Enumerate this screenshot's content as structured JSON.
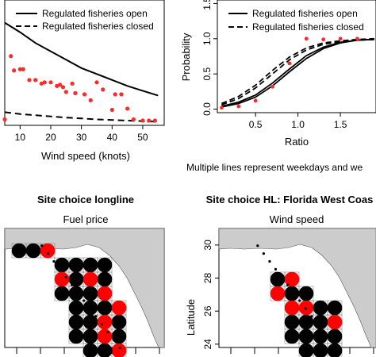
{
  "chart_data": [
    {
      "type": "scatter",
      "xlabel": "Wind speed (knots)",
      "xticks": [
        10,
        20,
        30,
        40,
        50
      ],
      "xlim": [
        5,
        57
      ],
      "ylim": [
        0,
        1.05
      ],
      "legend": {
        "placement": "top-right",
        "entries": [
          "Regulated fisheries open",
          "Regulated fisheries closed"
        ]
      },
      "points": [
        [
          5,
          0.05
        ],
        [
          7,
          0.58
        ],
        [
          8,
          0.46
        ],
        [
          10,
          0.47
        ],
        [
          11,
          0.47
        ],
        [
          13,
          0.38
        ],
        [
          15,
          0.38
        ],
        [
          17,
          0.35
        ],
        [
          18,
          0.36
        ],
        [
          20,
          0.36
        ],
        [
          22,
          0.33
        ],
        [
          23,
          0.34
        ],
        [
          24,
          0.32
        ],
        [
          25,
          0.28
        ],
        [
          27,
          0.35
        ],
        [
          28,
          0.27
        ],
        [
          31,
          0.26
        ],
        [
          33,
          0.21
        ],
        [
          35,
          0.36
        ],
        [
          37,
          0.3
        ],
        [
          40,
          0.13
        ],
        [
          41,
          0.26
        ],
        [
          43,
          0.26
        ],
        [
          45,
          0.14
        ],
        [
          47,
          0.05
        ],
        [
          50,
          0.04
        ],
        [
          52,
          0.04
        ],
        [
          54,
          0.04
        ]
      ],
      "series": [
        {
          "name": "Regulated fisheries open",
          "style": "solid",
          "x": [
            5,
            10,
            15,
            20,
            25,
            30,
            35,
            40,
            45,
            50,
            55
          ],
          "y": [
            0.86,
            0.78,
            0.69,
            0.62,
            0.55,
            0.48,
            0.43,
            0.38,
            0.33,
            0.29,
            0.25
          ]
        },
        {
          "name": "Regulated fisheries closed",
          "style": "dashed",
          "x": [
            5,
            10,
            15,
            20,
            25,
            30,
            35,
            40,
            45,
            50,
            55
          ],
          "y": [
            0.11,
            0.095,
            0.085,
            0.075,
            0.065,
            0.058,
            0.05,
            0.045,
            0.04,
            0.035,
            0.03
          ]
        }
      ]
    },
    {
      "type": "line",
      "xlabel": "Ratio",
      "ylabel": "Probability",
      "xticks": [
        0.5,
        1.0,
        1.5
      ],
      "yticks": [
        "0.0",
        "0.5",
        "1.0",
        "1.5"
      ],
      "xlim": [
        0.05,
        1.92
      ],
      "ylim": [
        -0.05,
        1.55
      ],
      "legend": {
        "placement": "top-left",
        "entries": [
          "Regulated fisheries open",
          "Regulated fisheries closed"
        ]
      },
      "points": [
        [
          0.1,
          0.02
        ],
        [
          0.3,
          0.04
        ],
        [
          0.5,
          0.12
        ],
        [
          0.7,
          0.32
        ],
        [
          0.9,
          0.65
        ],
        [
          1.1,
          1.0
        ],
        [
          1.3,
          0.99
        ],
        [
          1.5,
          1.0
        ],
        [
          1.7,
          1.0
        ]
      ],
      "series": [
        {
          "name": "Regulated fisheries open",
          "style": "solid",
          "x": [
            0.1,
            0.3,
            0.5,
            0.7,
            0.9,
            1.1,
            1.3,
            1.5,
            1.7,
            1.9
          ],
          "y": [
            0.04,
            0.1,
            0.2,
            0.37,
            0.57,
            0.76,
            0.88,
            0.95,
            0.98,
            0.99
          ]
        },
        {
          "name": "Regulated fisheries open",
          "style": "solid",
          "x": [
            0.1,
            0.3,
            0.5,
            0.7,
            0.9,
            1.1,
            1.3,
            1.5,
            1.7,
            1.9
          ],
          "y": [
            0.03,
            0.08,
            0.17,
            0.33,
            0.53,
            0.72,
            0.86,
            0.94,
            0.98,
            0.99
          ]
        },
        {
          "name": "Regulated fisheries closed",
          "style": "dashed",
          "x": [
            0.1,
            0.3,
            0.5,
            0.7,
            0.9,
            1.1,
            1.3,
            1.5,
            1.7,
            1.9
          ],
          "y": [
            0.08,
            0.18,
            0.34,
            0.55,
            0.74,
            0.87,
            0.94,
            0.97,
            0.99,
            1.0
          ]
        },
        {
          "name": "Regulated fisheries closed",
          "style": "dashed",
          "x": [
            0.1,
            0.3,
            0.5,
            0.7,
            0.9,
            1.1,
            1.3,
            1.5,
            1.7,
            1.9
          ],
          "y": [
            0.06,
            0.15,
            0.3,
            0.5,
            0.7,
            0.84,
            0.92,
            0.96,
            0.98,
            0.99
          ]
        }
      ]
    },
    {
      "type": "scatter",
      "title": "Site choice longline",
      "subtitle": "Fuel price",
      "sites": [
        [
          0,
          0,
          "#000000"
        ],
        [
          1,
          0,
          "#000000"
        ],
        [
          2,
          0,
          "#ff0000"
        ],
        [
          3,
          1,
          "#000000"
        ],
        [
          4,
          1,
          "#000000"
        ],
        [
          5,
          1,
          "#000000"
        ],
        [
          6,
          1,
          "#000000"
        ],
        [
          3,
          2,
          "#ff0000"
        ],
        [
          4,
          2,
          "#000000"
        ],
        [
          5,
          2,
          "#ff0000"
        ],
        [
          6,
          2,
          "#000000"
        ],
        [
          3,
          3,
          "#000000"
        ],
        [
          4,
          3,
          "#000000"
        ],
        [
          5,
          3,
          "#000000"
        ],
        [
          6,
          3,
          "#ff0000"
        ],
        [
          4,
          4,
          "#000000"
        ],
        [
          5,
          4,
          "#000000"
        ],
        [
          6,
          4,
          "#000000"
        ],
        [
          7,
          4,
          "#ff0000"
        ],
        [
          4,
          5,
          "#000000"
        ],
        [
          5,
          5,
          "#000000"
        ],
        [
          6,
          5,
          "#ff0000"
        ],
        [
          7,
          5,
          "#000000"
        ],
        [
          4,
          6,
          "#000000"
        ],
        [
          5,
          6,
          "#000000"
        ],
        [
          6,
          6,
          "#ff0000"
        ],
        [
          7,
          6,
          "#000000"
        ],
        [
          5,
          7,
          "#000000"
        ],
        [
          6,
          7,
          "#000000"
        ],
        [
          7,
          7,
          "#ff0000"
        ]
      ]
    },
    {
      "type": "scatter",
      "title": "Site choice HL: Florida West Coas",
      "subtitle": "Wind speed",
      "ylabel": "Latitude",
      "yticks": [
        "30",
        "28",
        "26",
        "24"
      ],
      "ylim": [
        23.8,
        31.0
      ],
      "sites": [
        [
          3,
          2,
          "#000000"
        ],
        [
          4,
          2,
          "#ff0000"
        ],
        [
          3,
          3,
          "#ff0000"
        ],
        [
          4,
          3,
          "#000000"
        ],
        [
          5,
          3,
          "#000000"
        ],
        [
          4,
          4,
          "#ff0000"
        ],
        [
          5,
          4,
          "#ff0000"
        ],
        [
          6,
          4,
          "#000000"
        ],
        [
          7,
          4,
          "#000000"
        ],
        [
          4,
          5,
          "#000000"
        ],
        [
          5,
          5,
          "#000000"
        ],
        [
          6,
          5,
          "#000000"
        ],
        [
          7,
          5,
          "#ff0000"
        ],
        [
          4,
          6,
          "#000000"
        ],
        [
          5,
          6,
          "#000000"
        ],
        [
          6,
          6,
          "#000000"
        ],
        [
          7,
          6,
          "#000000"
        ],
        [
          5,
          7,
          "#000000"
        ],
        [
          6,
          7,
          "#000000"
        ],
        [
          7,
          7,
          "#000000"
        ]
      ]
    }
  ],
  "caption": "Multiple lines represent weekdays and we"
}
